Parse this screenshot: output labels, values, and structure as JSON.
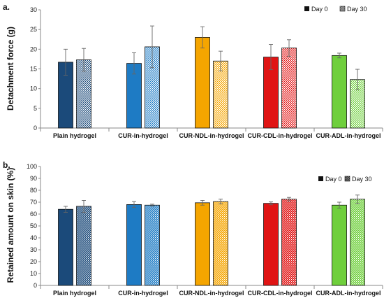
{
  "chart_data": [
    {
      "type": "bar",
      "panel_label": "a.",
      "title": "",
      "xlabel": "",
      "ylabel": "Detachment force (g)",
      "ylim": [
        0,
        30
      ],
      "yticks": [
        0,
        5,
        10,
        15,
        20,
        25,
        30
      ],
      "categories": [
        "Plain hydrogel",
        "CUR-in-hydrogel",
        "CUR-NDL-in-hydrogel",
        "CUR-CDL-in-hydrogel",
        "CUR-ADL-in-hydrogel"
      ],
      "category_colors": [
        "#1b4a7a",
        "#1e7bc4",
        "#f5a500",
        "#e01414",
        "#6fcf3c"
      ],
      "series": [
        {
          "name": "Day 0",
          "values": [
            16.7,
            16.4,
            23.0,
            18.0,
            18.4
          ],
          "errors": [
            3.3,
            2.7,
            2.7,
            3.2,
            0.6
          ],
          "pattern": "solid"
        },
        {
          "name": "Day 30",
          "values": [
            17.3,
            20.6,
            17.0,
            20.3,
            12.3
          ],
          "errors": [
            2.9,
            5.3,
            2.5,
            2.1,
            2.6
          ],
          "pattern": "dotted"
        }
      ],
      "grid": false,
      "legend": "top-right"
    },
    {
      "type": "bar",
      "panel_label": "b.",
      "title": "",
      "xlabel": "",
      "ylabel": "Retained amount on skin (%)",
      "ylim": [
        0,
        100
      ],
      "yticks": [
        0,
        10,
        20,
        30,
        40,
        50,
        60,
        70,
        80,
        90,
        100
      ],
      "categories": [
        "Plain hydrogel",
        "CUR-in-hydrogel",
        "CUR-NDL-in-hydrogel",
        "CUR-CDL-in-hydrogel",
        "CUR-ADL-in-hydrogel"
      ],
      "category_colors": [
        "#1b4a7a",
        "#1e7bc4",
        "#f5a500",
        "#e01414",
        "#6fcf3c"
      ],
      "series": [
        {
          "name": "Day 0",
          "values": [
            64.0,
            68.0,
            69.5,
            69.0,
            67.5
          ],
          "errors": [
            2.5,
            2.5,
            2.0,
            1.2,
            2.5
          ],
          "pattern": "solid"
        },
        {
          "name": "Day 30",
          "values": [
            66.5,
            67.5,
            70.5,
            72.5,
            72.5
          ],
          "errors": [
            5.0,
            0.8,
            2.0,
            1.5,
            3.5
          ],
          "pattern": "crosshatch"
        }
      ],
      "grid": false,
      "legend": "top-right"
    }
  ]
}
